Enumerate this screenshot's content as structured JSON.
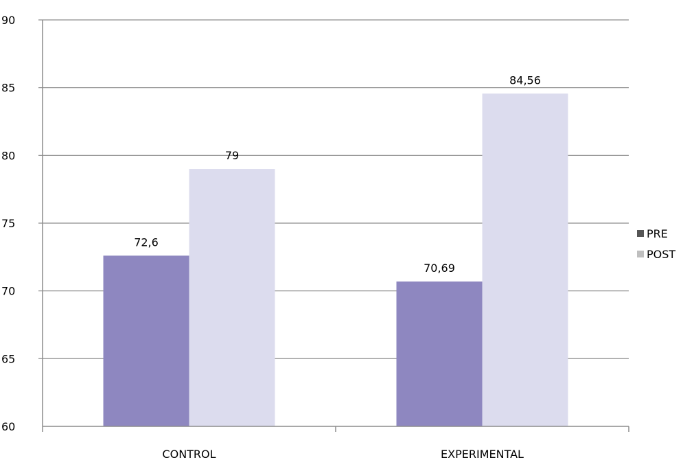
{
  "chart_data": {
    "type": "bar",
    "title": "",
    "xlabel": "",
    "ylabel": "",
    "categories": [
      "CONTROL",
      "EXPERIMENTAL"
    ],
    "series": [
      {
        "name": "PRE",
        "values": [
          72.6,
          70.69
        ],
        "labels": [
          "72,6",
          "70,69"
        ],
        "color": "#8E87C0",
        "legend_color": "#555555"
      },
      {
        "name": "POST",
        "values": [
          79,
          84.56
        ],
        "labels": [
          "79",
          "84,56"
        ],
        "color": "#DCDCEE",
        "legend_color": "#BFBFBF"
      }
    ],
    "ylim": [
      60,
      90
    ],
    "yticks": [
      60,
      65,
      70,
      75,
      80,
      85,
      90
    ],
    "grid": true,
    "legend_position": "right"
  }
}
